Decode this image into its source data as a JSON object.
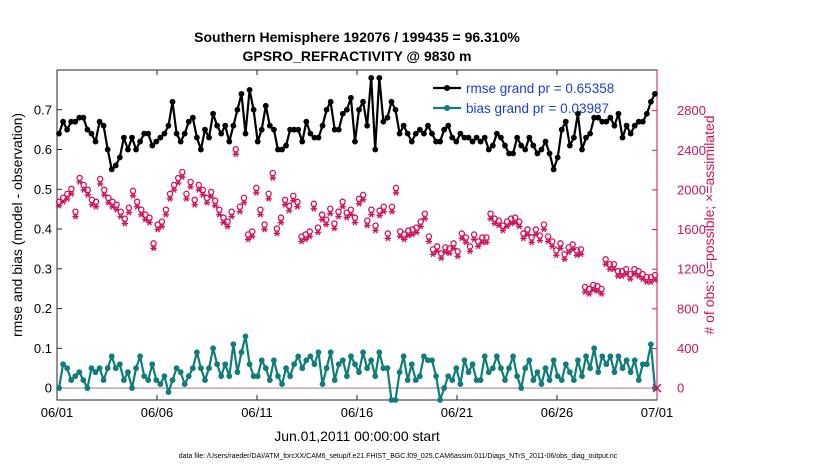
{
  "chart_data": {
    "type": "line",
    "title_line1": "Southern Hemisphere 192076 / 199435 = 96.310%",
    "title_line2": "GPSRO_REFRACTIVITY @ 9830 m",
    "xlabel": "Jun.01,2011 00:00:00 start",
    "ylabel_left": "rmse and bias (model - observation)",
    "ylabel_right": "# of obs: o=possible; ×=assimilated",
    "footnote": "data file: /Users/raeder/DAI/ATM_forcXX/CAM6_setup/f.e21.FHIST_BGC.f09_025.CAM6assim.011/Diags_NTrS_2011-06/obs_diag_output.nc",
    "x_tick_labels": [
      "06/01",
      "06/06",
      "06/11",
      "06/16",
      "06/21",
      "06/26",
      "07/01"
    ],
    "x_tick_values": [
      0,
      5,
      10,
      15,
      20,
      25,
      30
    ],
    "xlim": [
      0,
      30
    ],
    "ylim_left": [
      -0.03,
      0.8
    ],
    "left_tick_values": [
      0,
      0.1,
      0.2,
      0.3,
      0.4,
      0.5,
      0.6,
      0.7
    ],
    "left_tick_labels": [
      "0",
      "0.1",
      "0.2",
      "0.3",
      "0.4",
      "0.5",
      "0.6",
      "0.7"
    ],
    "ylim_right": [
      -120,
      3210
    ],
    "right_tick_values": [
      0,
      400,
      800,
      1200,
      1600,
      2000,
      2400,
      2800
    ],
    "right_tick_labels": [
      "0",
      "400",
      "800",
      "1200",
      "1600",
      "2000",
      "2400",
      "2800"
    ],
    "colors": {
      "rmse": "#000000",
      "bias": "#117d7a",
      "obs": "#d0125a",
      "zero_line": "#c8a0b4",
      "legend_text": "#1a3fd6",
      "axis": "#262626"
    },
    "series": [
      {
        "name": "rmse",
        "legend": "rmse grand pr = 0.65358",
        "axis": "left",
        "values": [
          0.64,
          0.67,
          0.65,
          0.67,
          0.67,
          0.68,
          0.68,
          0.65,
          0.64,
          0.62,
          0.67,
          0.66,
          0.6,
          0.55,
          0.56,
          0.58,
          0.63,
          0.6,
          0.63,
          0.6,
          0.62,
          0.64,
          0.64,
          0.61,
          0.62,
          0.63,
          0.64,
          0.66,
          0.72,
          0.64,
          0.62,
          0.64,
          0.67,
          0.68,
          0.63,
          0.6,
          0.65,
          0.63,
          0.69,
          0.66,
          0.64,
          0.66,
          0.62,
          0.66,
          0.7,
          0.74,
          0.64,
          0.75,
          0.7,
          0.62,
          0.65,
          0.71,
          0.66,
          0.65,
          0.6,
          0.6,
          0.61,
          0.65,
          0.65,
          0.65,
          0.62,
          0.67,
          0.64,
          0.63,
          0.63,
          0.66,
          0.7,
          0.72,
          0.65,
          0.65,
          0.69,
          0.7,
          0.73,
          0.62,
          0.7,
          0.72,
          0.66,
          0.78,
          0.6,
          0.78,
          0.67,
          0.68,
          0.72,
          0.7,
          0.64,
          0.66,
          0.64,
          0.62,
          0.64,
          0.65,
          0.64,
          0.66,
          0.64,
          0.62,
          0.62,
          0.65,
          0.66,
          0.63,
          0.62,
          0.64,
          0.63,
          0.63,
          0.62,
          0.63,
          0.62,
          0.63,
          0.6,
          0.61,
          0.64,
          0.63,
          0.61,
          0.59,
          0.59,
          0.63,
          0.61,
          0.6,
          0.63,
          0.61,
          0.59,
          0.6,
          0.62,
          0.59,
          0.55,
          0.58,
          0.65,
          0.67,
          0.61,
          0.63,
          0.69,
          0.6,
          0.63,
          0.64,
          0.68,
          0.68,
          0.67,
          0.67,
          0.68,
          0.66,
          0.69,
          0.63,
          0.66,
          0.64,
          0.66,
          0.67,
          0.67,
          0.69,
          0.72,
          0.74
        ]
      },
      {
        "name": "bias",
        "legend": "bias grand pr = 0.03987",
        "axis": "left",
        "values": [
          0.0,
          0.06,
          0.05,
          0.02,
          0.03,
          0.04,
          0.02,
          0.0,
          0.05,
          0.04,
          0.05,
          0.02,
          0.05,
          0.08,
          0.05,
          0.06,
          0.02,
          0.04,
          0.0,
          0.05,
          0.08,
          0.03,
          0.02,
          0.06,
          0.02,
          0.01,
          0.03,
          -0.01,
          0.02,
          0.05,
          0.04,
          0.01,
          0.03,
          0.05,
          0.09,
          0.05,
          0.02,
          0.05,
          0.1,
          0.06,
          0.03,
          0.06,
          0.03,
          0.11,
          0.04,
          0.09,
          0.13,
          0.06,
          0.03,
          0.03,
          0.07,
          0.05,
          0.02,
          0.07,
          0.03,
          0.01,
          0.05,
          0.03,
          0.06,
          0.08,
          0.05,
          0.07,
          0.08,
          0.06,
          0.09,
          0.01,
          0.05,
          0.09,
          0.02,
          0.06,
          0.07,
          0.03,
          0.08,
          0.06,
          0.04,
          0.09,
          0.05,
          0.07,
          0.03,
          0.09,
          0.05,
          0.05,
          -0.03,
          -0.03,
          0.04,
          0.08,
          0.02,
          0.06,
          0.02,
          0.03,
          0.08,
          0.07,
          0.07,
          0.03,
          -0.03,
          0.0,
          0.03,
          0.02,
          0.05,
          0.01,
          0.07,
          0.04,
          0.06,
          0.02,
          0.02,
          0.08,
          0.04,
          0.05,
          0.08,
          0.05,
          0.02,
          0.05,
          0.08,
          0.03,
          0.0,
          0.05,
          0.07,
          0.02,
          0.04,
          0.01,
          0.05,
          0.02,
          0.07,
          0.03,
          0.02,
          0.06,
          0.04,
          0.02,
          0.07,
          0.03,
          0.08,
          0.05,
          0.1,
          0.04,
          0.08,
          0.06,
          0.08,
          0.04,
          0.08,
          0.05,
          0.07,
          0.04,
          0.07,
          0.02,
          0.06,
          0.06,
          0.11,
          0.0
        ]
      },
      {
        "name": "obs_possible",
        "legend": "",
        "axis": "right",
        "values": [
          1880,
          1920,
          1960,
          2010,
          1780,
          2120,
          2050,
          2000,
          1900,
          1880,
          2110,
          2000,
          1920,
          1880,
          1850,
          1780,
          1710,
          1820,
          1990,
          1880,
          1800,
          1750,
          1720,
          1460,
          1650,
          1680,
          1800,
          1960,
          2050,
          2120,
          2180,
          1960,
          2080,
          1900,
          2050,
          2000,
          1920,
          1980,
          1890,
          1800,
          1720,
          1680,
          1780,
          2410,
          1830,
          1920,
          1550,
          1580,
          2020,
          1800,
          1650,
          1960,
          2170,
          1610,
          1720,
          1900,
          1840,
          1940,
          1880,
          1530,
          1550,
          1580,
          1860,
          1620,
          1750,
          1700,
          1810,
          1660,
          1780,
          1880,
          1770,
          1800,
          1720,
          1910,
          1950,
          1690,
          1800,
          1640,
          1790,
          1830,
          1560,
          1830,
          2020,
          1580,
          1550,
          1590,
          1600,
          1620,
          1680,
          1760,
          1530,
          1400,
          1430,
          1360,
          1420,
          1410,
          1460,
          1380,
          1560,
          1520,
          1430,
          1550,
          1480,
          1520,
          1520,
          1760,
          1710,
          1690,
          1640,
          1680,
          1710,
          1720,
          1680,
          1560,
          1600,
          1520,
          1600,
          1540,
          1650,
          1530,
          1480,
          1390,
          1460,
          1350,
          1420,
          1450,
          1390,
          1400,
          1020,
          1000,
          1040,
          1030,
          1000,
          1300,
          1250,
          1250,
          1180,
          1180,
          1200,
          1150,
          1200,
          1180,
          1150,
          1120,
          1120,
          1140
        ]
      },
      {
        "name": "obs_assimilated",
        "legend": "",
        "axis": "right",
        "values": [
          1840,
          1880,
          1910,
          1960,
          1730,
          2080,
          2000,
          1950,
          1850,
          1830,
          2060,
          1950,
          1870,
          1830,
          1800,
          1730,
          1660,
          1770,
          1940,
          1830,
          1750,
          1700,
          1670,
          1410,
          1600,
          1630,
          1750,
          1910,
          2000,
          2070,
          2130,
          1910,
          2030,
          1850,
          2000,
          1950,
          1870,
          1930,
          1840,
          1750,
          1670,
          1630,
          1730,
          2360,
          1780,
          1870,
          1500,
          1530,
          1970,
          1750,
          1600,
          1910,
          2120,
          1560,
          1670,
          1850,
          1790,
          1890,
          1830,
          1480,
          1500,
          1530,
          1810,
          1570,
          1700,
          1650,
          1760,
          1610,
          1730,
          1830,
          1720,
          1750,
          1670,
          1860,
          1900,
          1640,
          1750,
          1590,
          1740,
          1780,
          1510,
          1780,
          1970,
          1530,
          1500,
          1540,
          1550,
          1570,
          1630,
          1710,
          1480,
          1350,
          1380,
          1310,
          1370,
          1360,
          1410,
          1330,
          1510,
          1470,
          1380,
          1500,
          1430,
          1470,
          1470,
          1710,
          1660,
          1640,
          1590,
          1630,
          1660,
          1670,
          1630,
          1510,
          1550,
          1470,
          1550,
          1490,
          1600,
          1480,
          1430,
          1340,
          1410,
          1300,
          1370,
          1400,
          1340,
          1350,
          970,
          950,
          990,
          980,
          950,
          1250,
          1200,
          1200,
          1130,
          1130,
          1150,
          1100,
          1150,
          1130,
          1100,
          1070,
          1070,
          1090
        ]
      }
    ],
    "legend_position": "top-right",
    "grid": false
  }
}
